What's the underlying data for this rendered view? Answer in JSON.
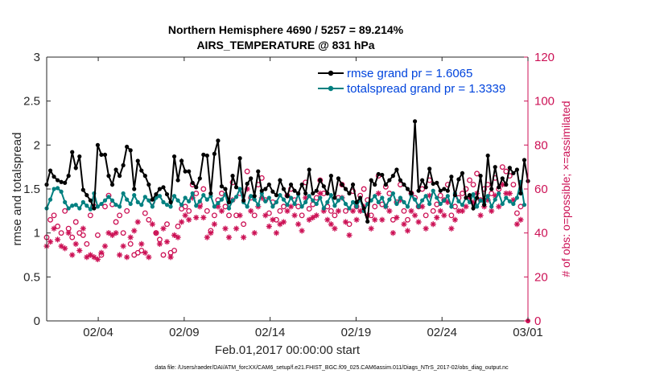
{
  "chart_data": {
    "type": "line",
    "title": "Northern Hemisphere 4690 / 5257 = 89.214%",
    "subtitle": "AIRS_TEMPERATURE @ 831 hPa",
    "xlabel": "Feb.01,2017 00:00:00 start",
    "ylabel": "rmse and totalspread",
    "y2label": "# of obs: o=possible; ×=assimilated",
    "ylim": [
      0,
      3
    ],
    "y2lim": [
      0,
      120
    ],
    "xlim": [
      0,
      28
    ],
    "yticks": [
      "0",
      "0.5",
      "1",
      "1.5",
      "2",
      "2.5",
      "3"
    ],
    "y2ticks": [
      "0",
      "20",
      "40",
      "60",
      "80",
      "100",
      "120"
    ],
    "xticks": [
      {
        "label": "02/04",
        "day": 3
      },
      {
        "label": "02/09",
        "day": 8
      },
      {
        "label": "02/14",
        "day": 13
      },
      {
        "label": "02/19",
        "day": 18
      },
      {
        "label": "02/24",
        "day": 23
      },
      {
        "label": "03/01",
        "day": 28
      }
    ],
    "footnote": "data file: /Users/raeder/DAI/ATM_forcXX/CAM6_setup/f.e21.FHIST_BGC.f09_025.CAM6assim.011/Diags_NTrS_2017-02/obs_diag_output.nc",
    "legend_location": "top-right",
    "colors": {
      "rmse": "#000000",
      "spread": "#008080",
      "obs": "#cc1155",
      "legend_text": "#0044dd"
    },
    "series": [
      {
        "name": "rmse grand pr = 1.6065",
        "values": [
          1.55,
          1.71,
          1.64,
          1.6,
          1.58,
          1.57,
          1.65,
          1.92,
          1.74,
          1.87,
          1.49,
          1.43,
          1.37,
          1.28,
          2.0,
          1.89,
          1.89,
          1.65,
          1.55,
          1.72,
          1.65,
          1.77,
          1.98,
          1.94,
          1.5,
          1.82,
          1.71,
          1.65,
          1.55,
          1.38,
          1.44,
          1.5,
          1.52,
          1.44,
          1.35,
          1.87,
          1.6,
          1.82,
          1.7,
          1.7,
          1.57,
          1.52,
          1.62,
          1.89,
          1.88,
          1.45,
          1.9,
          2.05,
          1.53,
          1.5,
          1.35,
          1.65,
          1.52,
          1.85,
          1.37,
          1.56,
          1.62,
          1.42,
          1.7,
          1.48,
          1.5,
          1.55,
          1.47,
          1.43,
          1.6,
          1.5,
          1.42,
          1.55,
          1.48,
          1.45,
          1.55,
          1.45,
          1.72,
          1.45,
          1.48,
          1.6,
          1.53,
          1.45,
          1.65,
          1.4,
          1.62,
          1.55,
          1.5,
          1.45,
          1.55,
          1.35,
          1.4,
          1.28,
          1.13,
          1.6,
          1.55,
          1.67,
          1.66,
          1.55,
          1.6,
          1.65,
          1.72,
          1.6,
          1.55,
          1.5,
          1.45,
          2.27,
          1.48,
          1.6,
          1.52,
          1.73,
          1.56,
          1.57,
          1.48,
          1.5,
          1.48,
          1.64,
          1.43,
          1.61,
          1.68,
          1.4,
          1.43,
          1.28,
          1.4,
          1.65,
          1.32,
          1.88,
          1.5,
          1.75,
          1.52,
          1.62,
          1.55,
          1.74,
          1.68,
          1.72,
          1.45,
          1.83,
          1.59
        ],
        "marker": "filled-circle"
      },
      {
        "name": "totalspread grand pr = 1.3339",
        "values": [
          1.28,
          1.38,
          1.5,
          1.51,
          1.47,
          1.35,
          1.28,
          1.31,
          1.32,
          1.28,
          1.35,
          1.31,
          1.27,
          1.45,
          1.3,
          1.33,
          1.37,
          1.41,
          1.37,
          1.32,
          1.3,
          1.45,
          1.38,
          1.33,
          1.43,
          1.35,
          1.32,
          1.41,
          1.37,
          1.3,
          1.4,
          1.42,
          1.35,
          1.32,
          1.3,
          1.42,
          1.37,
          1.32,
          1.4,
          1.36,
          1.45,
          1.31,
          1.36,
          1.43,
          1.38,
          1.42,
          1.3,
          1.34,
          1.38,
          1.44,
          1.28,
          1.37,
          1.41,
          1.5,
          1.35,
          1.3,
          1.42,
          1.38,
          1.32,
          1.45,
          1.36,
          1.4,
          1.3,
          1.35,
          1.43,
          1.38,
          1.32,
          1.4,
          1.33,
          1.44,
          1.3,
          1.35,
          1.42,
          1.37,
          1.33,
          1.4,
          1.28,
          1.35,
          1.43,
          1.31,
          1.37,
          1.4,
          1.33,
          1.28,
          1.35,
          1.3,
          1.38,
          1.25,
          1.33,
          1.37,
          1.42,
          1.35,
          1.4,
          1.3,
          1.38,
          1.45,
          1.33,
          1.4,
          1.35,
          1.3,
          1.43,
          1.38,
          1.3,
          1.37,
          1.42,
          1.33,
          1.48,
          1.4,
          1.33,
          1.37,
          1.42,
          1.3,
          1.45,
          1.36,
          1.32,
          1.4,
          1.35,
          1.44,
          1.3,
          1.37,
          1.35,
          1.42,
          1.3,
          1.38,
          1.45,
          1.33,
          1.4,
          1.36,
          1.33,
          1.4,
          1.58,
          1.32
        ],
        "marker": "filled-circle"
      },
      {
        "name": "obs possible",
        "axis": "right",
        "marker": "open-circle",
        "values": [
          38,
          46,
          48,
          43,
          40,
          50,
          42,
          38,
          45,
          40,
          39,
          35,
          48,
          52,
          39,
          30,
          52,
          57,
          53,
          45,
          48,
          40,
          50,
          35,
          30,
          31,
          32,
          49,
          46,
          54,
          40,
          37,
          30,
          44,
          31,
          32,
          43,
          51,
          52,
          50,
          62,
          58,
          53,
          60,
          50,
          41,
          48,
          55,
          58,
          52,
          48,
          63,
          48,
          58,
          44,
          68,
          56,
          48,
          62,
          65,
          55,
          49,
          54,
          46,
          50,
          52,
          57,
          60,
          55,
          52,
          48,
          63,
          51,
          53,
          56,
          64,
          58,
          52,
          50,
          48,
          56,
          62,
          50,
          44,
          59,
          52,
          57,
          60,
          55,
          48,
          52,
          66,
          53,
          61,
          58,
          46,
          54,
          62,
          50,
          46,
          58,
          56,
          52,
          60,
          48,
          64,
          50,
          53,
          57,
          55,
          62,
          48,
          52,
          56,
          58,
          60,
          64,
          62,
          67,
          55,
          60,
          62,
          58,
          65,
          60,
          70,
          68,
          66,
          62,
          49,
          52
        ]
      },
      {
        "name": "obs assimilated",
        "axis": "right",
        "marker": "asterisk",
        "values": [
          34,
          36,
          42,
          37,
          34,
          33,
          40,
          30,
          35,
          32,
          42,
          29,
          30,
          29,
          28,
          31,
          34,
          40,
          39,
          40,
          30,
          34,
          29,
          38,
          41,
          45,
          35,
          31,
          29,
          44,
          40,
          35,
          42,
          36,
          29,
          39,
          38,
          45,
          48,
          46,
          56,
          47,
          52,
          47,
          38,
          40,
          44,
          52,
          50,
          42,
          38,
          55,
          42,
          48,
          38,
          60,
          50,
          40,
          52,
          56,
          48,
          43,
          46,
          40,
          44,
          45,
          50,
          52,
          48,
          44,
          41,
          56,
          46,
          47,
          48,
          58,
          50,
          46,
          44,
          42,
          50,
          56,
          45,
          39,
          50,
          46,
          50,
          52,
          48,
          42,
          46,
          58,
          46,
          52,
          50,
          40,
          47,
          55,
          44,
          41,
          50,
          48,
          45,
          52,
          42,
          57,
          44,
          47,
          50,
          48,
          54,
          42,
          46,
          50,
          50,
          52,
          56,
          54,
          58,
          48,
          52,
          55,
          50,
          57,
          52,
          62,
          58,
          58,
          55,
          44,
          46
        ]
      }
    ]
  }
}
